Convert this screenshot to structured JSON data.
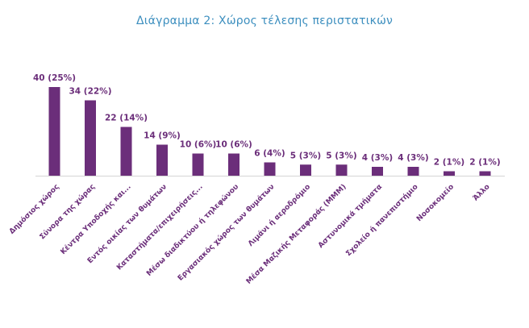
{
  "colors": {
    "bar": "#6b2e7a",
    "title": "#3d8fbf",
    "axis": "#d4d4d4",
    "label": "#6b2e7a"
  },
  "chart_data": {
    "type": "bar",
    "title": "Διάγραμμα 2: Χώρος τέλεσης περιστατικών",
    "xlabel": "",
    "ylabel": "",
    "ylim": [
      0,
      40
    ],
    "grid": false,
    "categories": [
      "Δημόσιος χώρος",
      "Σύνορα της χώρας",
      "Κέντρα Υποδοχής και...",
      "Εντός οικίας των θυμάτων",
      "Καταστήματα/επιχειρήσεις...",
      "Μέσω διαδικτύου ή τηλεφώνου",
      "Εργασιακός χώρος των θυμάτων",
      "Λιμάνι ή αεροδρόμιο",
      "Μέσα Μαζικής Μεταφοράς (ΜΜΜ)",
      "Αστυνομικά τμήματα",
      "Σχολείο ή πανεπιστήμιο",
      "Νοσοκομείο",
      "Άλλο"
    ],
    "values": [
      40,
      34,
      22,
      14,
      10,
      10,
      6,
      5,
      5,
      4,
      4,
      2,
      2
    ],
    "data_labels": [
      "40 (25%)",
      "34 (22%)",
      "22 (14%)",
      "14 (9%)",
      "10 (6%)",
      "10 (6%)",
      "6 (4%)",
      "5 (3%)",
      "5 (3%)",
      "4 (3%)",
      "4 (3%)",
      "2 (1%)",
      "2 (1%)"
    ]
  }
}
